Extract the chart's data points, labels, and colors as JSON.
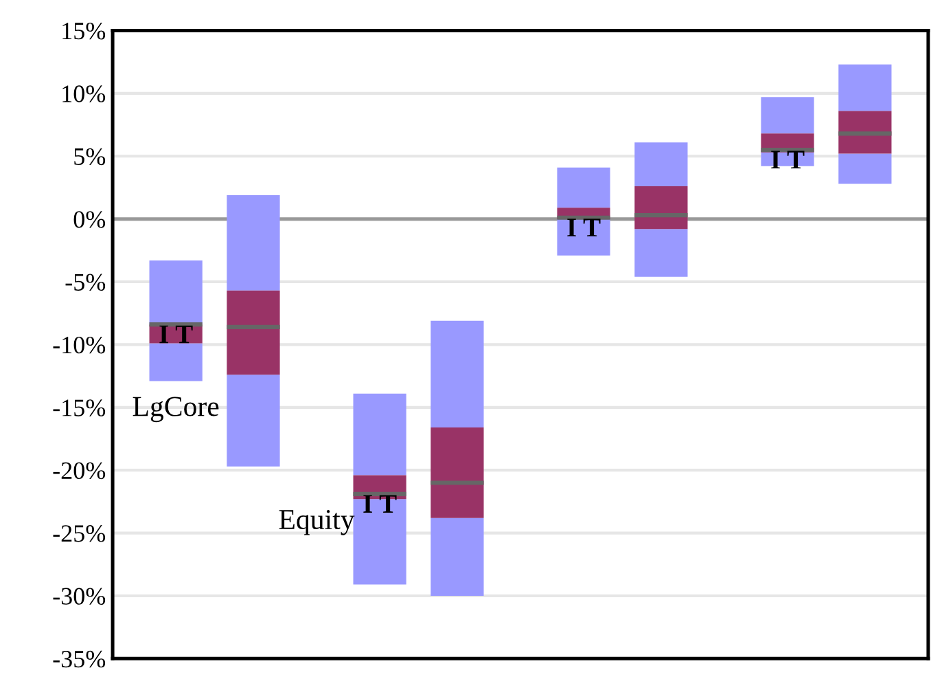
{
  "chart_data": {
    "type": "box",
    "categories": [
      null,
      null,
      null,
      null
    ],
    "series": [
      {
        "color": "#993366",
        "boxes": [
          {
            "low": -12.9,
            "q1": -9.9,
            "median": -8.4,
            "q3": -8.4,
            "high": -3.3
          },
          {
            "low": -29.1,
            "q1": -22.3,
            "median": -21.9,
            "q3": -20.4,
            "high": -13.9
          },
          {
            "low": -2.9,
            "q1": 0.0,
            "median": 0.1,
            "q3": 0.9,
            "high": 4.1
          },
          {
            "low": 4.2,
            "q1": 5.3,
            "median": 5.5,
            "q3": 6.8,
            "high": 9.7
          }
        ]
      },
      {
        "color": "#993366",
        "boxes": [
          {
            "low": -19.7,
            "q1": -12.4,
            "median": -8.6,
            "q3": -5.7,
            "high": 1.9
          },
          {
            "low": -30.0,
            "q1": -23.8,
            "median": -21.0,
            "q3": -16.6,
            "high": -8.1
          },
          {
            "low": -4.6,
            "q1": -0.8,
            "median": 0.3,
            "q3": 2.6,
            "high": 6.1
          },
          {
            "low": 2.8,
            "q1": 5.2,
            "median": 6.8,
            "q3": 8.6,
            "high": 12.3
          }
        ]
      }
    ],
    "ylim": [
      -35,
      15
    ],
    "yticks": [
      {
        "value": 15,
        "label": "15%"
      },
      {
        "value": 10,
        "label": "10%"
      },
      {
        "value": 5,
        "label": "5%"
      },
      {
        "value": 0,
        "label": "0%"
      },
      {
        "value": -5,
        "label": "-5%"
      },
      {
        "value": -10,
        "label": "-10%"
      },
      {
        "value": -15,
        "label": "-15%"
      },
      {
        "value": -20,
        "label": "-20%"
      },
      {
        "value": -25,
        "label": "-25%"
      },
      {
        "value": -30,
        "label": "-30%"
      },
      {
        "value": -35,
        "label": "-35%"
      }
    ],
    "ref_lines": [
      {
        "axis": "y",
        "value": 0,
        "color": "#999999"
      }
    ],
    "grid": "y",
    "tick_labels": "y",
    "annotations": [
      "LgCore",
      "Equity",
      "I T",
      "I T",
      "I T",
      "I T"
    ]
  }
}
